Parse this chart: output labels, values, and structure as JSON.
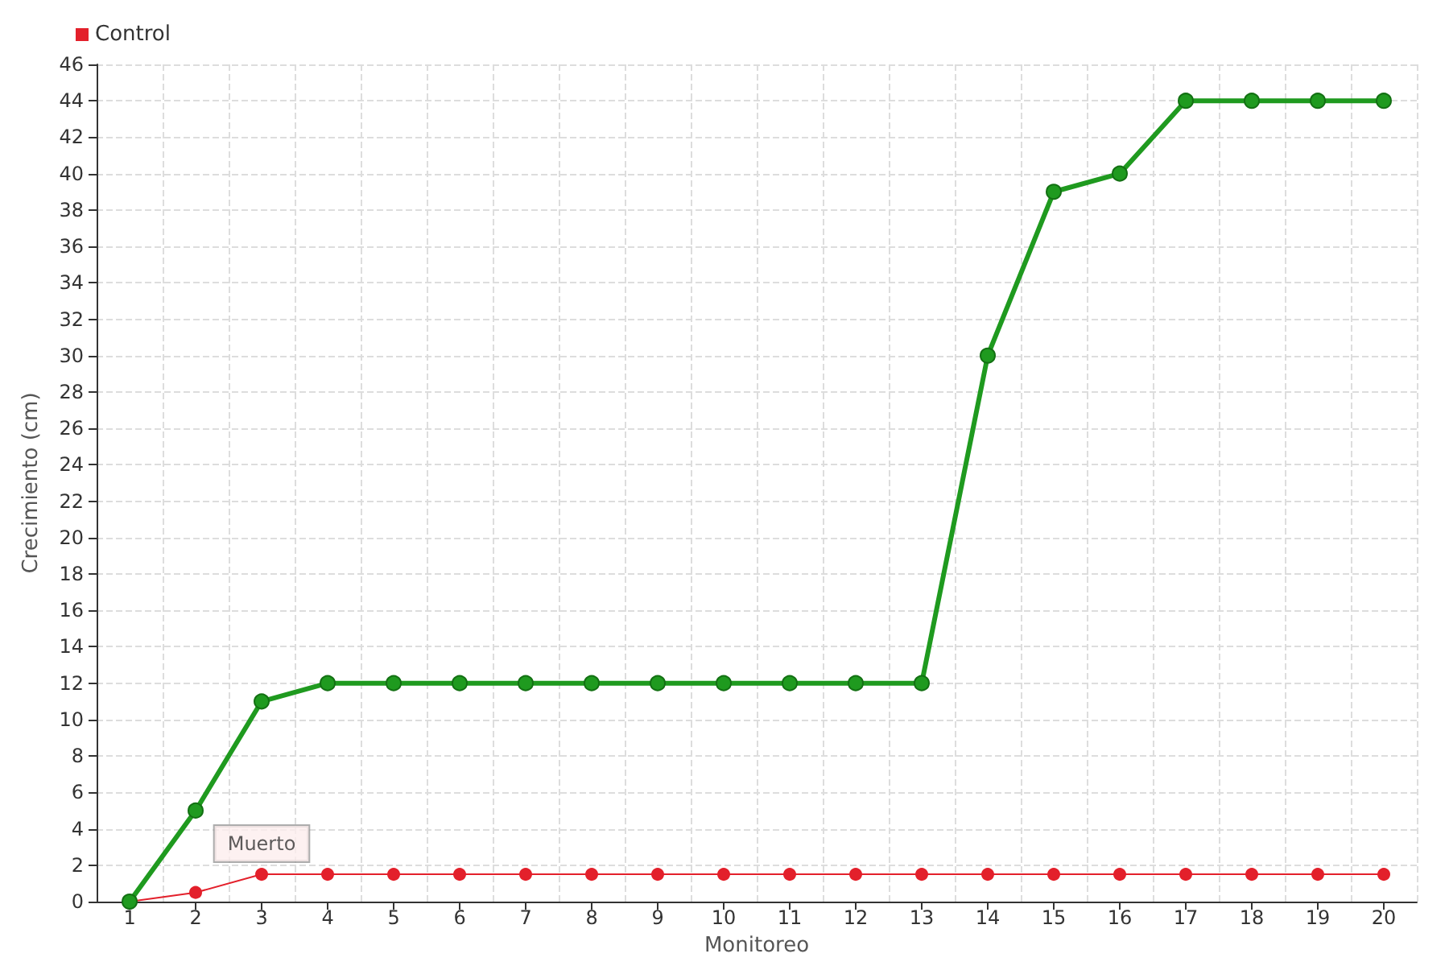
{
  "chart_data": {
    "type": "line",
    "xlabel": "Monitoreo",
    "ylabel": "Crecimiento (cm)",
    "categories": [
      "1",
      "2",
      "3",
      "4",
      "5",
      "6",
      "7",
      "8",
      "9",
      "10",
      "11",
      "12",
      "13",
      "14",
      "15",
      "16",
      "17",
      "18",
      "19",
      "20"
    ],
    "series": [
      {
        "color": "#1f9a1f",
        "values": [
          0,
          5,
          11,
          12,
          12,
          12,
          12,
          12,
          12,
          12,
          12,
          12,
          12,
          30,
          39,
          40,
          44,
          44,
          44,
          44
        ]
      },
      {
        "name": "Control",
        "color": "#e3202b",
        "values": [
          0,
          0.5,
          1.5,
          1.5,
          1.5,
          1.5,
          1.5,
          1.5,
          1.5,
          1.5,
          1.5,
          1.5,
          1.5,
          1.5,
          1.5,
          1.5,
          1.5,
          1.5,
          1.5,
          1.5
        ]
      }
    ],
    "annotations": [
      {
        "text": "Muerto",
        "x": "3",
        "y": 1.5
      }
    ],
    "ylim": [
      0,
      46
    ],
    "yticks": [
      0,
      2,
      4,
      6,
      8,
      10,
      12,
      14,
      16,
      18,
      20,
      22,
      24,
      26,
      28,
      30,
      32,
      34,
      36,
      38,
      40,
      42,
      44,
      46
    ],
    "grid": true,
    "legend": "top left",
    "marker": "circle",
    "line_style": "solid"
  }
}
